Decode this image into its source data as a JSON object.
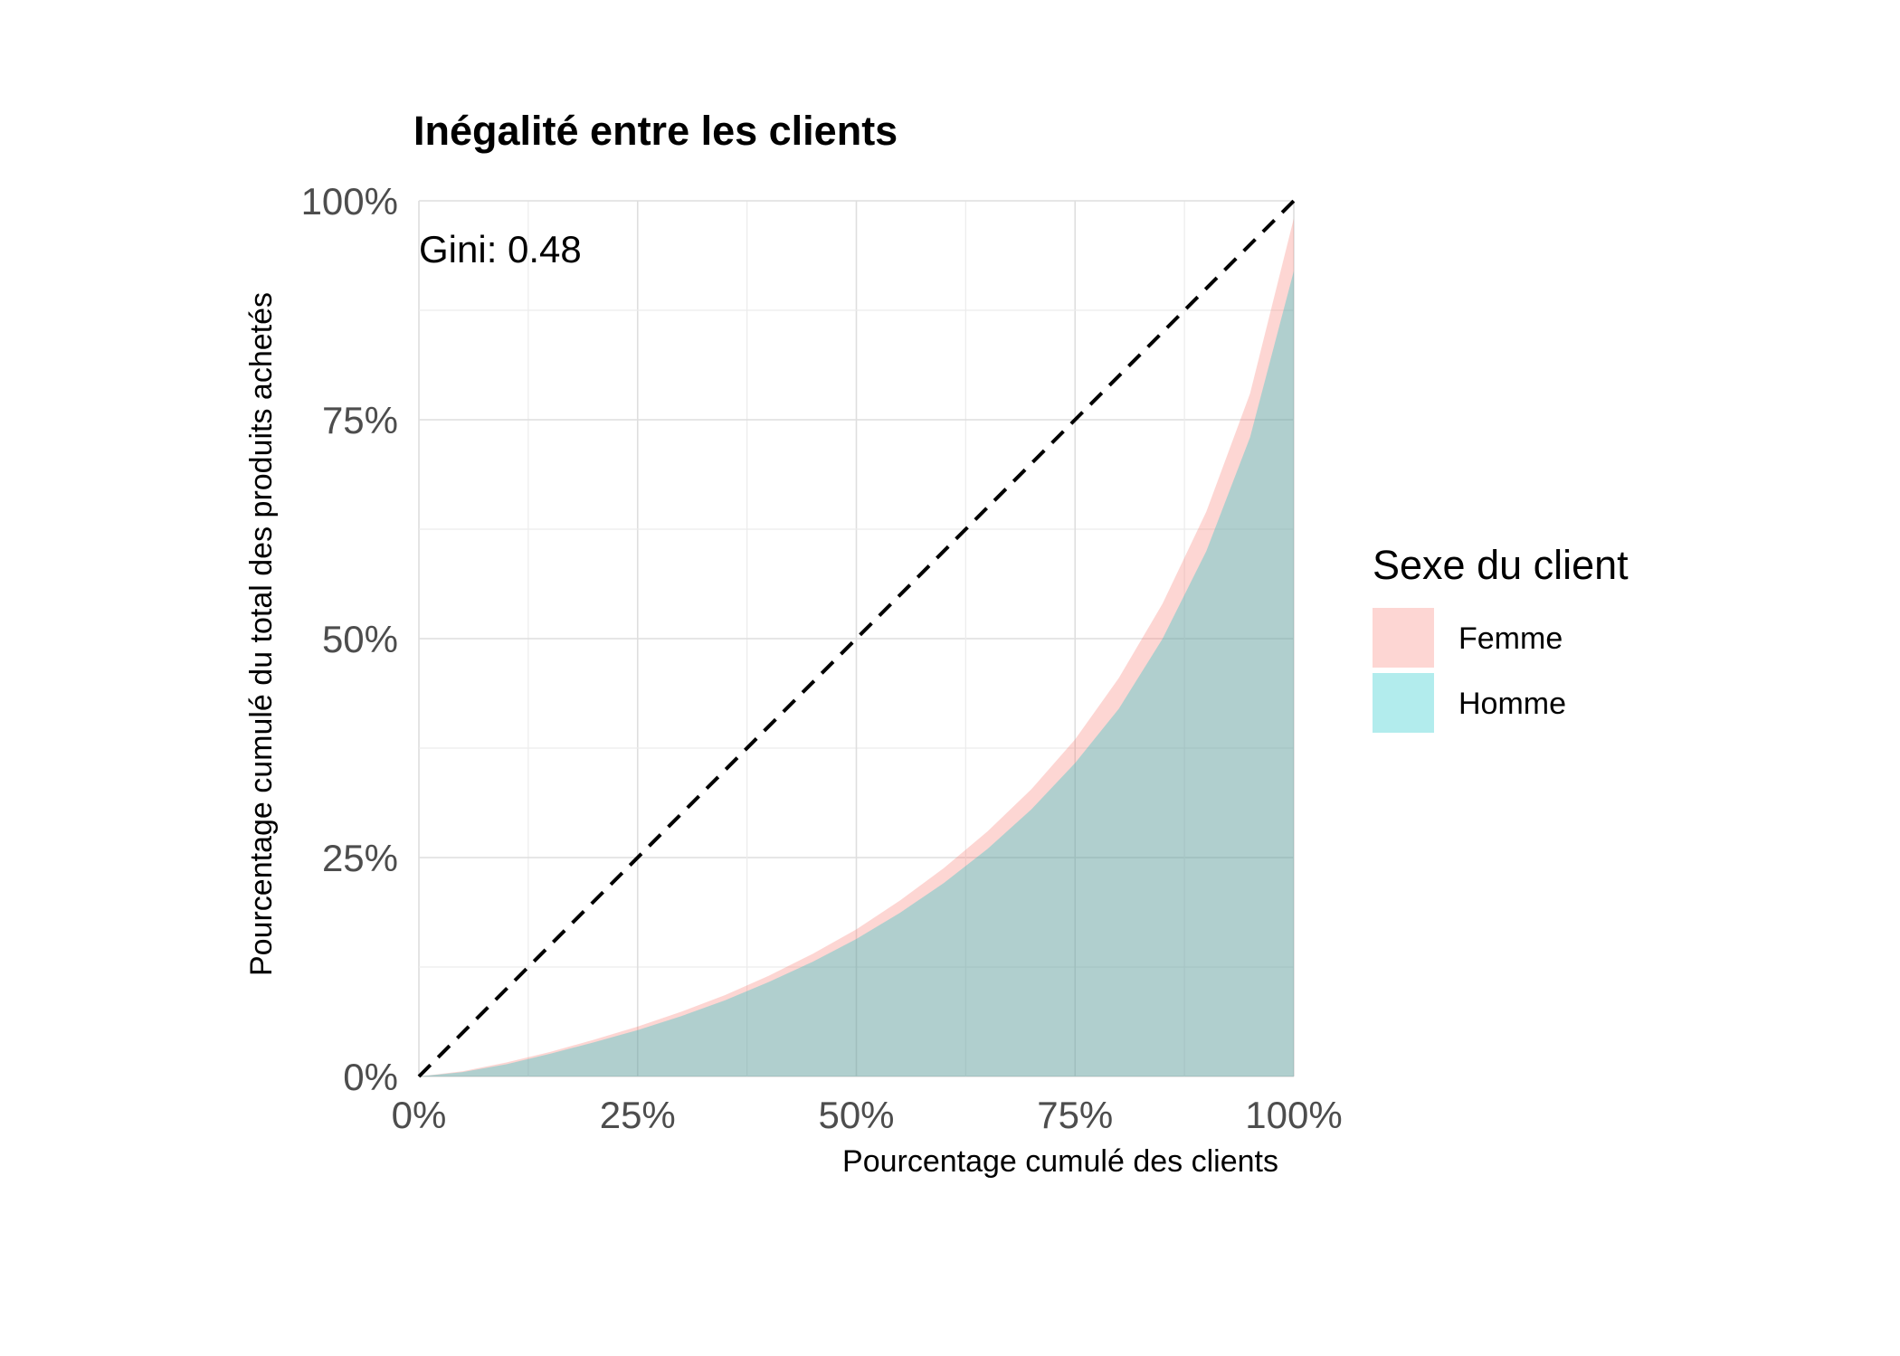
{
  "chart_data": {
    "type": "area",
    "title": "Inégalité entre les clients",
    "xlabel": "Pourcentage cumulé des clients",
    "ylabel": "Pourcentage cumulé du total des produits achetés",
    "xlim": [
      0,
      1
    ],
    "ylim": [
      0,
      1
    ],
    "x_ticks": [
      "0%",
      "25%",
      "50%",
      "75%",
      "100%"
    ],
    "y_ticks": [
      "0%",
      "25%",
      "50%",
      "75%",
      "100%"
    ],
    "grid": true,
    "annotation": "Gini: 0.48",
    "reference_line": {
      "style": "dashed",
      "from": [
        0,
        0
      ],
      "to": [
        1,
        1
      ]
    },
    "legend": {
      "title": "Sexe du client",
      "position": "right"
    },
    "x": [
      0,
      0.05,
      0.1,
      0.15,
      0.2,
      0.25,
      0.3,
      0.35,
      0.4,
      0.45,
      0.5,
      0.55,
      0.6,
      0.65,
      0.7,
      0.75,
      0.8,
      0.85,
      0.9,
      0.95,
      1.0
    ],
    "series": [
      {
        "name": "Femme",
        "color": "#F8766D",
        "values": [
          0,
          0.006,
          0.016,
          0.028,
          0.042,
          0.057,
          0.074,
          0.093,
          0.115,
          0.14,
          0.168,
          0.201,
          0.238,
          0.28,
          0.328,
          0.385,
          0.455,
          0.54,
          0.645,
          0.78,
          0.98
        ]
      },
      {
        "name": "Homme",
        "color": "#00BFC4",
        "values": [
          0,
          0.005,
          0.014,
          0.026,
          0.039,
          0.053,
          0.069,
          0.087,
          0.108,
          0.131,
          0.157,
          0.187,
          0.221,
          0.26,
          0.305,
          0.358,
          0.42,
          0.5,
          0.6,
          0.73,
          0.92
        ]
      }
    ]
  }
}
